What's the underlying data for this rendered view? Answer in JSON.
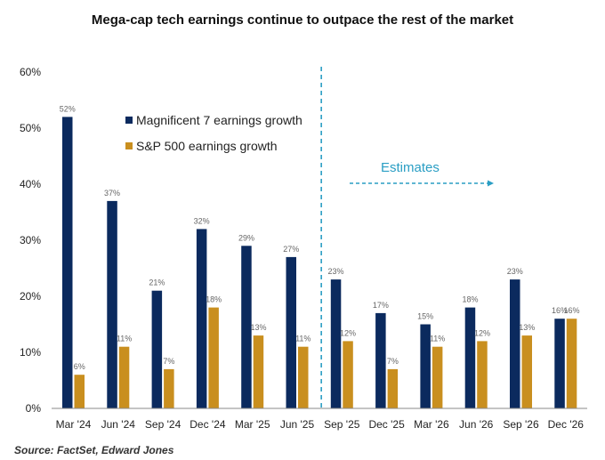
{
  "chart_data": {
    "type": "bar",
    "title": "Mega-cap tech earnings continue to outpace the rest of the market",
    "xlabel": "",
    "ylabel": "",
    "ylim": [
      0,
      60
    ],
    "yticks": [
      "0%",
      "10%",
      "20%",
      "30%",
      "40%",
      "50%",
      "60%"
    ],
    "ytick_values": [
      0,
      10,
      20,
      30,
      40,
      50,
      60
    ],
    "grid": false,
    "legend_position": "top-left",
    "categories": [
      "Mar '24",
      "Jun '24",
      "Sep '24",
      "Dec '24",
      "Mar '25",
      "Jun '25",
      "Sep '25",
      "Dec '25",
      "Mar '26",
      "Jun '26",
      "Sep '26",
      "Dec '26"
    ],
    "series": [
      {
        "name": "Magnificent 7 earnings growth",
        "color": "#0b2a5e",
        "values": [
          52,
          37,
          21,
          32,
          29,
          27,
          23,
          17,
          15,
          18,
          23,
          16
        ],
        "labels": [
          "52%",
          "37%",
          "21%",
          "32%",
          "29%",
          "27%",
          "23%",
          "17%",
          "15%",
          "18%",
          "23%",
          "16%"
        ]
      },
      {
        "name": "S&P 500 earnings growth",
        "color": "#c98f1f",
        "values": [
          6,
          11,
          7,
          18,
          13,
          11,
          12,
          7,
          11,
          12,
          13,
          16
        ],
        "labels": [
          "6%",
          "11%",
          "7%",
          "18%",
          "13%",
          "11%",
          "12%",
          "7%",
          "11%",
          "12%",
          "13%",
          "16%"
        ]
      }
    ],
    "annotations": [
      {
        "text": "Estimates",
        "type": "arrow-right",
        "starts_after_category": "Jun '25",
        "color": "#2a9ec4"
      }
    ]
  },
  "source": "Source: FactSet, Edward Jones"
}
